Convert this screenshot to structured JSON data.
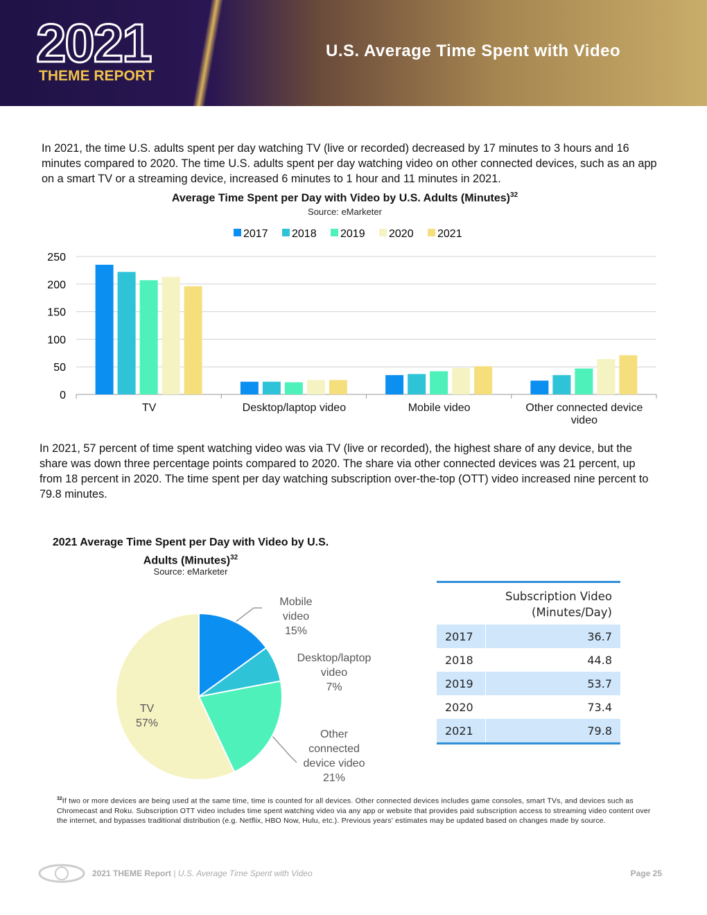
{
  "header": {
    "logo_year": "2021",
    "logo_sub": "THEME REPORT",
    "title": "U.S. Average Time Spent with Video"
  },
  "paragraphs": [
    "In 2021, the time U.S. adults spent per day watching TV (live or recorded) decreased by 17 minutes to 3 hours and 16 minutes compared to 2020. The time U.S. adults spent per day watching video on other connected devices, such as an app on a smart TV or a streaming device, increased 6 minutes to 1 hour and 11 minutes in 2021.",
    "In 2021, 57 percent of time spent watching video was via TV (live or recorded), the highest share of any device, but the share was down three percentage points compared to 2020. The share via other connected devices was 21 percent, up from 18 percent in 2020. The time spent per day watching subscription over-the-top (OTT) video increased nine percent to 79.8 minutes."
  ],
  "chart_data": [
    {
      "type": "bar",
      "title": "Average Time Spent per Day with Video by U.S. Adults (Minutes)",
      "title_note": "32",
      "subtitle": "Source: eMarketer",
      "categories": [
        "TV",
        "Desktop/laptop video",
        "Mobile video",
        "Other connected device video"
      ],
      "series": [
        {
          "name": "2017",
          "color": "#0b8ff0",
          "values": [
            235,
            23,
            35,
            25
          ]
        },
        {
          "name": "2018",
          "color": "#2fc3d8",
          "values": [
            222,
            23,
            37,
            35
          ]
        },
        {
          "name": "2019",
          "color": "#4ef1b9",
          "values": [
            207,
            22,
            42,
            47
          ]
        },
        {
          "name": "2020",
          "color": "#f6f3c3",
          "values": [
            213,
            26,
            48,
            64
          ]
        },
        {
          "name": "2021",
          "color": "#f5df7c",
          "values": [
            196,
            26,
            51,
            71
          ]
        }
      ],
      "ylim": [
        0,
        250
      ],
      "yticks": [
        0,
        50,
        100,
        150,
        200,
        250
      ],
      "grid": true,
      "legend": "top"
    },
    {
      "type": "pie",
      "title": "2021 Average Time Spent per Day with Video by U.S. Adults (Minutes)",
      "title_note": "32",
      "subtitle": "Source: eMarketer",
      "categories": [
        "Mobile video",
        "Desktop/laptop video",
        "Other connected device video",
        "TV"
      ],
      "values": [
        15,
        7,
        21,
        57
      ],
      "value_labels": [
        "15%",
        "7%",
        "21%",
        "57%"
      ],
      "colors": [
        "#0b8ff0",
        "#2fc3d8",
        "#4ef1b9",
        "#f6f3c3"
      ]
    }
  ],
  "table": {
    "header": [
      "Subscription Video",
      "(Minutes/Day)"
    ],
    "rows": [
      [
        "2017",
        36.7
      ],
      [
        "2018",
        44.8
      ],
      [
        "2019",
        53.7
      ],
      [
        "2020",
        73.4
      ],
      [
        "2021",
        79.8
      ]
    ]
  },
  "footnote": {
    "mark": "32",
    "text": "If two or more devices are being used at the same time, time is counted for all devices. Other connected devices includes game consoles, smart TVs, and devices such as Chromecast and Roku. Subscription OTT video includes time spent watching video via any app or website that provides paid subscription access to streaming video content over the internet, and bypasses traditional distribution (e.g. Netflix, HBO Now, Hulu, etc.). Previous years' estimates may be updated based on changes made by source."
  },
  "footer": {
    "report": "2021 THEME Report",
    "separator": "|",
    "section": "U.S. Average Time Spent with Video",
    "page": "Page 25"
  }
}
